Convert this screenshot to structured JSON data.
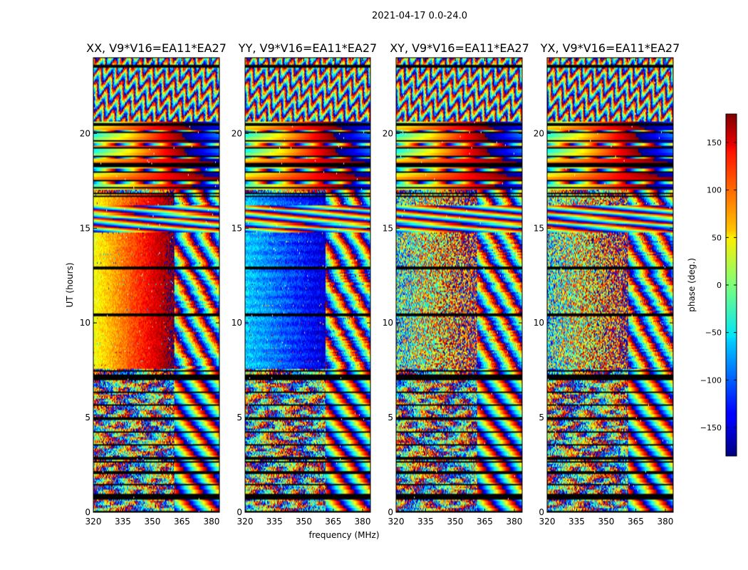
{
  "figure": {
    "suptitle": "2021-04-17 0.0-24.0"
  },
  "chart_data": {
    "type": "heatmap",
    "title": "2021-04-17 0.0-24.0",
    "xlabel": "frequency (MHz)",
    "ylabel": "UT (hours)",
    "xlim": [
      320,
      384
    ],
    "ylim": [
      0,
      24
    ],
    "x_ticks": [
      320,
      335,
      350,
      365,
      380
    ],
    "y_ticks": [
      0,
      5,
      10,
      15,
      20
    ],
    "panels": [
      {
        "title": "XX, V9*V16=EA11*EA27",
        "pattern": "xx"
      },
      {
        "title": "YY, V9*V16=EA11*EA27",
        "pattern": "yy"
      },
      {
        "title": "XY, V9*V16=EA11*EA27",
        "pattern": "xy"
      },
      {
        "title": "YX, V9*V16=EA11*EA27",
        "pattern": "yx"
      }
    ],
    "colorbar": {
      "label": "phase (deg.)",
      "range": [
        -180,
        180
      ],
      "ticks": [
        150,
        100,
        50,
        0,
        -50,
        -100,
        -150
      ],
      "tick_labels": [
        "150",
        "100",
        "50",
        "0",
        "−50",
        "−100",
        "−150"
      ],
      "colormap": "jet"
    },
    "gaps_ut": [
      0.9,
      2.05,
      2.65,
      7.2,
      7.45,
      10.45,
      16.7,
      18.3,
      20.5,
      23.55
    ],
    "good_band_ut": [
      7.6,
      16.8
    ]
  }
}
